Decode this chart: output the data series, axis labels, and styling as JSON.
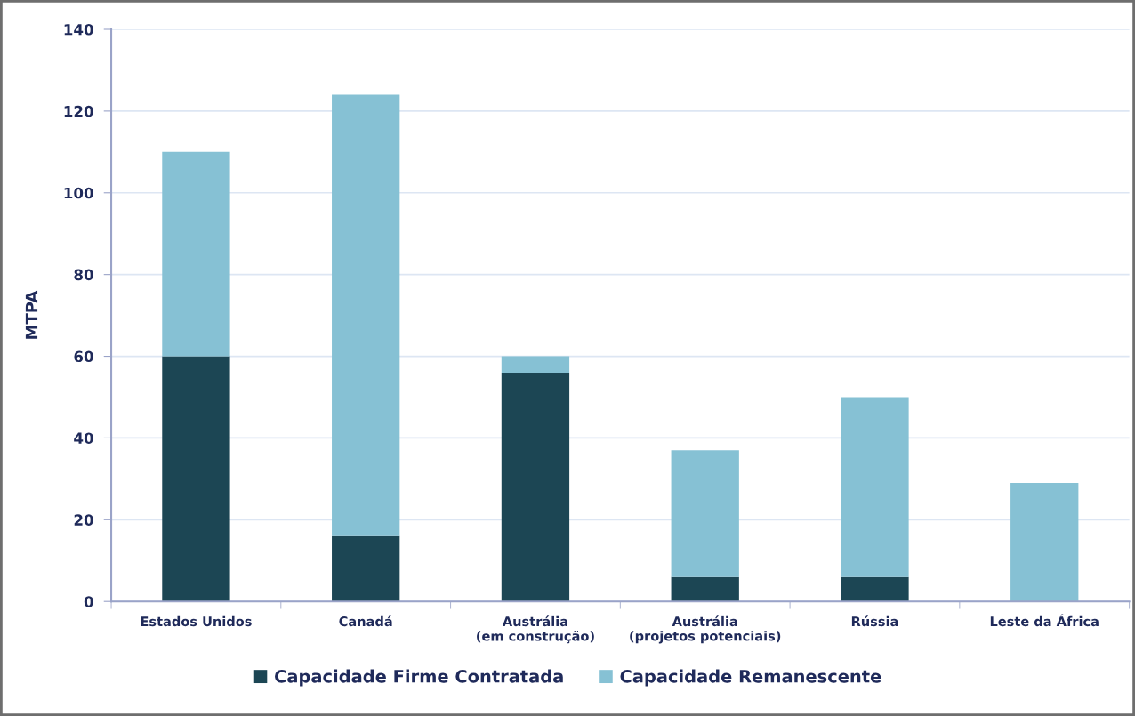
{
  "chart_data": {
    "type": "bar",
    "stacked": true,
    "ylabel": "MTPA",
    "categories": [
      "Estados Unidos",
      "Canadá",
      "Austrália\n(em construção)",
      "Austrália\n(projetos potenciais)",
      "Rússia",
      "Leste da África"
    ],
    "series": [
      {
        "name": "Capacidade Firme Contratada",
        "color": "#1c4654",
        "values": [
          60,
          16,
          56,
          6,
          6,
          0
        ]
      },
      {
        "name": "Capacidade Remanescente",
        "color": "#86c1d4",
        "values": [
          50,
          108,
          4,
          31,
          44,
          29
        ]
      }
    ],
    "ylim": [
      0,
      140
    ],
    "yticks": [
      0,
      20,
      40,
      60,
      80,
      100,
      120,
      140
    ],
    "grid": "y",
    "legend": "bottom"
  }
}
